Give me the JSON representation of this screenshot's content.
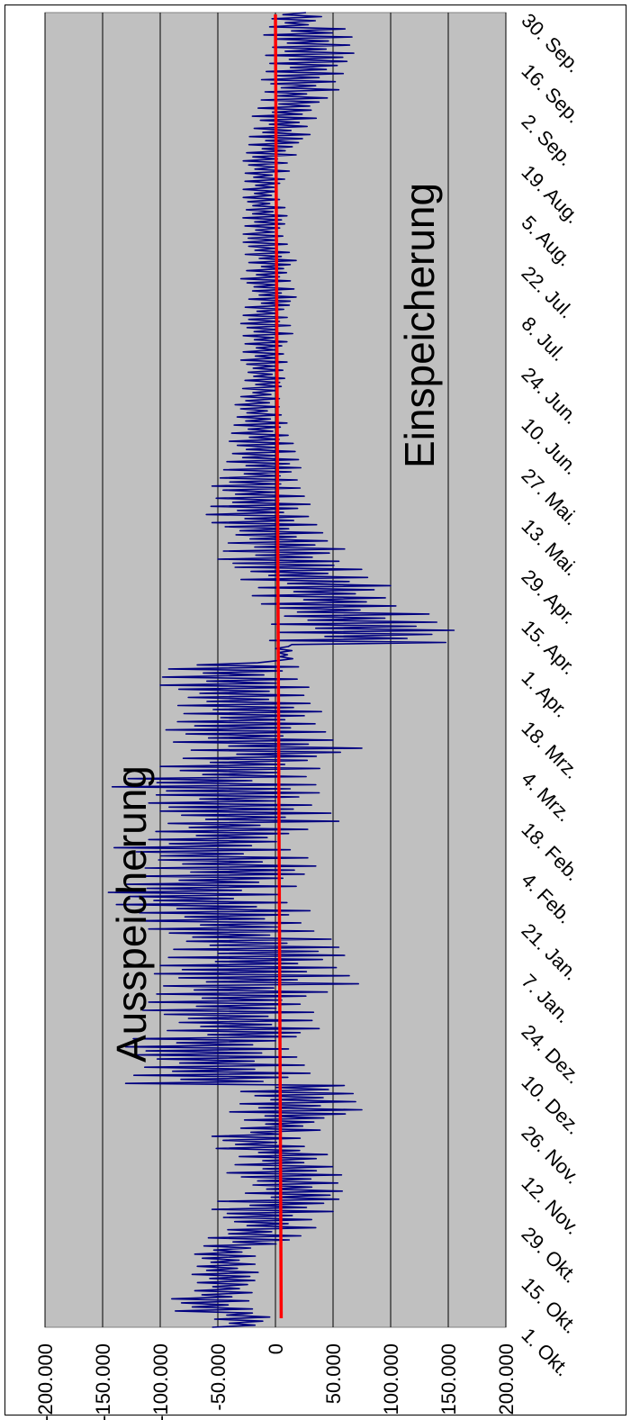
{
  "chart_data": {
    "type": "line",
    "orientation": "rotated 90° clockwise (time runs bottom to top)",
    "grid": true,
    "title": "",
    "xlabel": "",
    "ylabel": "",
    "ylim": [
      -200000,
      200000
    ],
    "y_ticks": [
      "200.000",
      "150.000",
      "100.000",
      "50.000",
      "0",
      "-50.000",
      "-100.000",
      "-150.000",
      "-200.000"
    ],
    "x_ticks": [
      "1. Okt.",
      "15. Okt.",
      "29. Okt.",
      "12. Nov.",
      "26. Nov.",
      "10. Dez.",
      "24. Dez.",
      "7. Jan.",
      "21. Jan.",
      "4. Feb.",
      "18. Feb.",
      "4. Mrz.",
      "18. Mrz.",
      "1. Apr.",
      "15. Apr.",
      "29. Apr.",
      "13. Mai.",
      "27. Mai.",
      "10. Jun.",
      "24. Jun.",
      "8. Jul.",
      "22. Jul.",
      "5. Aug.",
      "19. Aug.",
      "2. Sep.",
      "16. Sep.",
      "30. Sep."
    ],
    "annotations": [
      "Ausspeicherung",
      "Einspeicherung"
    ],
    "series_color": "#000080",
    "mean_line_color": "#ff0000",
    "mean_line": [
      5000,
      0
    ],
    "series": [
      {
        "description": "daily storage flow, envelope (min, max) per period",
        "envelope": [
          [
            -55000,
            -5000
          ],
          [
            -90000,
            -20000
          ],
          [
            -70000,
            -18000
          ],
          [
            -75000,
            -15000
          ],
          [
            -70000,
            -15000
          ],
          [
            -62000,
            22000
          ],
          [
            -45000,
            35000
          ],
          [
            -55000,
            55000
          ],
          [
            -30000,
            58000
          ],
          [
            -42000,
            62000
          ],
          [
            -35000,
            45000
          ],
          [
            -55000,
            25000
          ],
          [
            -30000,
            42000
          ],
          [
            -45000,
            75000
          ],
          [
            -30000,
            72000
          ],
          [
            -130000,
            30000
          ],
          [
            -120000,
            25000
          ],
          [
            -130000,
            18000
          ],
          [
            -100000,
            38000
          ],
          [
            -115000,
            40000
          ],
          [
            -110000,
            45000
          ],
          [
            -105000,
            72000
          ],
          [
            -100000,
            60000
          ],
          [
            -95000,
            55000
          ],
          [
            -110000,
            40000
          ],
          [
            -125000,
            30000
          ],
          [
            -145000,
            10000
          ],
          [
            -130000,
            25000
          ],
          [
            -120000,
            35000
          ],
          [
            -140000,
            20000
          ],
          [
            -110000,
            28000
          ],
          [
            -100000,
            55000
          ],
          [
            -110000,
            38000
          ],
          [
            -150000,
            35000
          ],
          [
            -100000,
            45000
          ],
          [
            -80000,
            75000
          ],
          [
            -95000,
            50000
          ],
          [
            -85000,
            40000
          ],
          [
            -90000,
            30000
          ],
          [
            -100000,
            35000
          ],
          [
            -98000,
            20000
          ],
          [
            0,
            15000
          ],
          [
            -5000,
            155000
          ],
          [
            -10000,
            140000
          ],
          [
            -12000,
            110000
          ],
          [
            -20000,
            100000
          ],
          [
            -35000,
            80000
          ],
          [
            -50000,
            60000
          ],
          [
            -45000,
            45000
          ],
          [
            -55000,
            40000
          ],
          [
            -60000,
            30000
          ],
          [
            -55000,
            25000
          ],
          [
            -48000,
            22000
          ],
          [
            -45000,
            20000
          ],
          [
            -40000,
            18000
          ],
          [
            -38000,
            10000
          ],
          [
            -35000,
            5000
          ],
          [
            -30000,
            5000
          ],
          [
            -28000,
            8000
          ],
          [
            -30000,
            12000
          ],
          [
            -28000,
            10000
          ],
          [
            -30000,
            15000
          ],
          [
            -28000,
            12000
          ],
          [
            -25000,
            18000
          ],
          [
            -30000,
            15000
          ],
          [
            -25000,
            18000
          ],
          [
            -28000,
            12000
          ],
          [
            -28000,
            8000
          ],
          [
            -30000,
            10000
          ],
          [
            -28000,
            5000
          ],
          [
            -28000,
            8000
          ],
          [
            -28000,
            12000
          ],
          [
            -25000,
            20000
          ],
          [
            -25000,
            30000
          ],
          [
            -20000,
            38000
          ],
          [
            -15000,
            45000
          ],
          [
            -12000,
            55000
          ],
          [
            -8000,
            62000
          ],
          [
            -12000,
            68000
          ],
          [
            -10000,
            70000
          ],
          [
            -5000,
            40000
          ]
        ]
      }
    ]
  }
}
